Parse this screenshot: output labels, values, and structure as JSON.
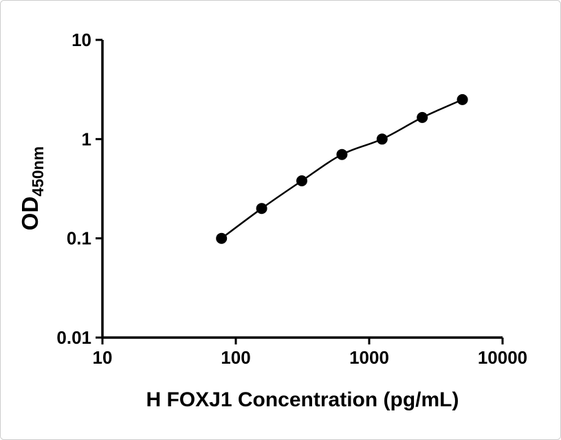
{
  "figure": {
    "background": "#ffffff",
    "border_color": "#cccccc"
  },
  "chart_data": {
    "type": "scatter",
    "title": "",
    "xlabel": "H FOXJ1 Concentration (pg/mL)",
    "ylabel_main": "OD",
    "ylabel_sub": "450nm",
    "x_scale": "log",
    "y_scale": "log",
    "xlim": [
      10,
      10000
    ],
    "ylim": [
      0.01,
      10
    ],
    "x_ticks": [
      10,
      100,
      1000,
      10000
    ],
    "x_tick_labels": [
      "10",
      "100",
      "1000",
      "10000"
    ],
    "y_ticks": [
      0.01,
      0.1,
      1,
      10
    ],
    "y_tick_labels": [
      "0.01",
      "0.1",
      "1",
      "10"
    ],
    "grid": false,
    "legend": "none",
    "x": [
      78.1,
      156.3,
      312.5,
      625,
      1250,
      2500,
      5000
    ],
    "y": [
      0.1,
      0.2,
      0.38,
      0.7,
      1.0,
      1.65,
      2.5
    ],
    "fit_line": true,
    "axis_color": "#000000",
    "marker_color": "#000000",
    "curve_color": "#000000",
    "marker_size_px": 8
  }
}
